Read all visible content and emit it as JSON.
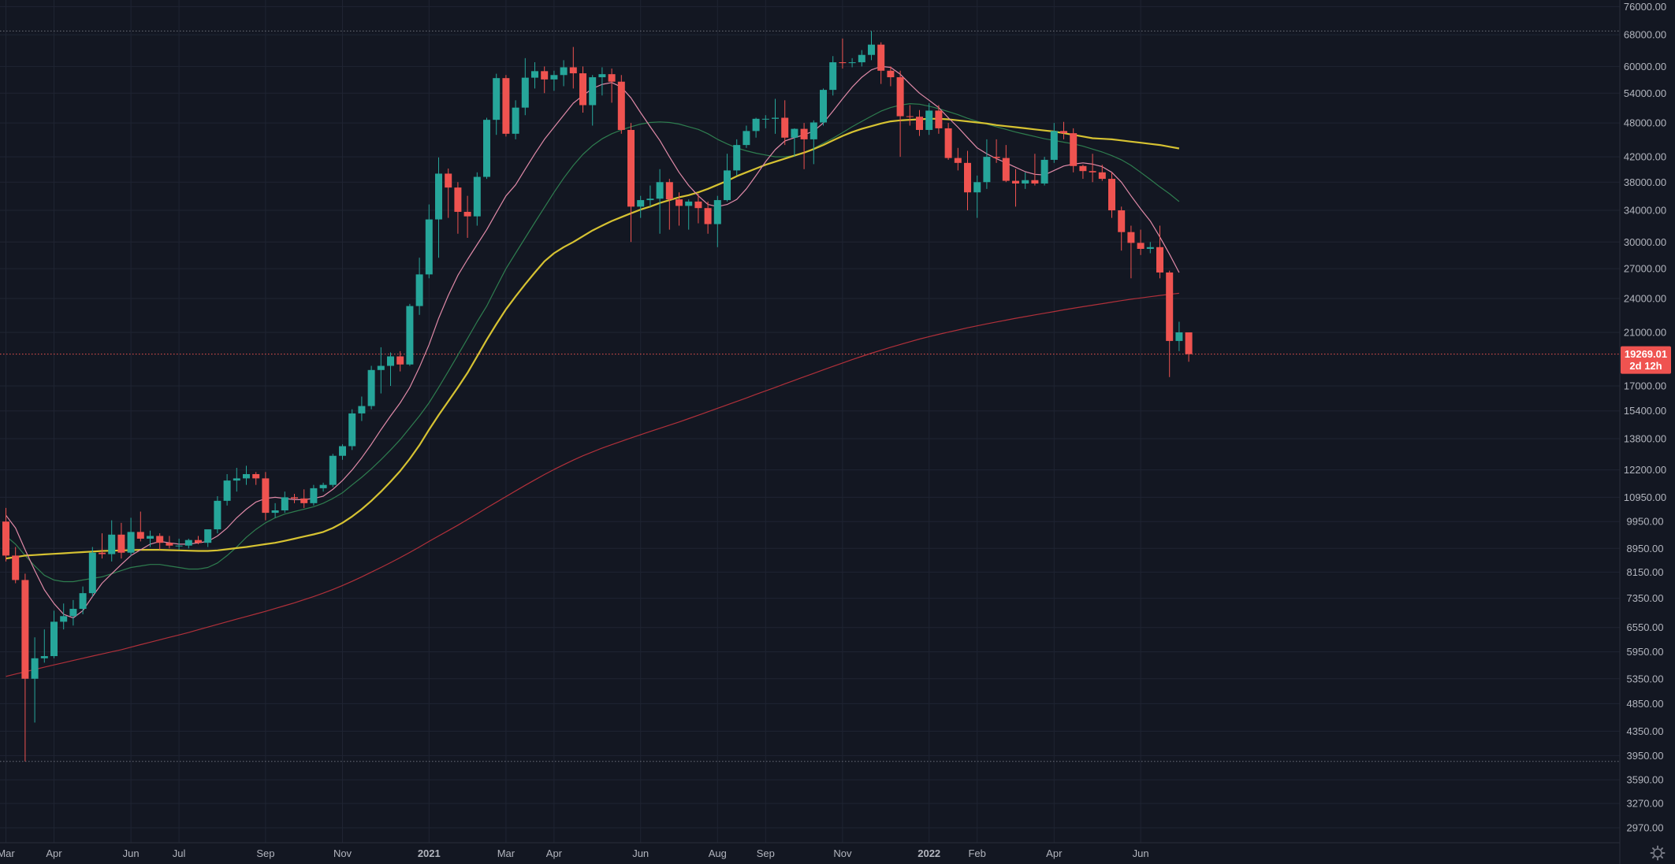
{
  "chart_data": {
    "type": "candlestick",
    "title": "",
    "xlabel": "",
    "ylabel": "",
    "scale": "log",
    "ylim": [
      2800,
      78000
    ],
    "grid": true,
    "colors": {
      "background": "#131722",
      "grid": "#1f2432",
      "up": "#26a69a",
      "down": "#ef5350",
      "ma_short": "#e08aa8",
      "ma_medium": "#2e7d4f",
      "ma_long": "#d6c232",
      "ma_very_long": "#b0303a",
      "axis_text": "#b2b5be"
    },
    "y_ticks": [
      "76000.00",
      "68000.00",
      "60000.00",
      "54000.00",
      "48000.00",
      "42000.00",
      "38000.00",
      "34000.00",
      "30000.00",
      "27000.00",
      "24000.00",
      "21000.00",
      "17000.00",
      "15400.00",
      "13800.00",
      "12200.00",
      "10950.00",
      "9950.00",
      "8950.00",
      "8150.00",
      "7350.00",
      "6550.00",
      "5950.00",
      "5350.00",
      "4850.00",
      "4350.00",
      "3950.00",
      "3590.00",
      "3270.00",
      "2970.00"
    ],
    "x_ticks": [
      {
        "label": "Mar",
        "index": 0
      },
      {
        "label": "Apr",
        "index": 5
      },
      {
        "label": "Jun",
        "index": 13
      },
      {
        "label": "Jul",
        "index": 18
      },
      {
        "label": "Sep",
        "index": 27
      },
      {
        "label": "Nov",
        "index": 35
      },
      {
        "label": "2021",
        "index": 44
      },
      {
        "label": "Mar",
        "index": 52
      },
      {
        "label": "Apr",
        "index": 57
      },
      {
        "label": "Jun",
        "index": 66
      },
      {
        "label": "Aug",
        "index": 74
      },
      {
        "label": "Sep",
        "index": 79
      },
      {
        "label": "Nov",
        "index": 87
      },
      {
        "label": "2022",
        "index": 96
      },
      {
        "label": "Feb",
        "index": 101
      },
      {
        "label": "Apr",
        "index": 109
      },
      {
        "label": "Jun",
        "index": 118
      }
    ],
    "candles": [
      [
        9950,
        10500,
        8500,
        8700
      ],
      [
        8700,
        9000,
        7800,
        7900
      ],
      [
        7900,
        8100,
        3860,
        5350
      ],
      [
        5350,
        6300,
        4500,
        5800
      ],
      [
        5800,
        6500,
        5700,
        5850
      ],
      [
        5850,
        7000,
        5800,
        6700
      ],
      [
        6700,
        7200,
        6500,
        6850
      ],
      [
        6850,
        7300,
        6600,
        7050
      ],
      [
        7050,
        7700,
        6900,
        7500
      ],
      [
        7500,
        9000,
        7400,
        8800
      ],
      [
        8800,
        9500,
        8600,
        8750
      ],
      [
        8750,
        10000,
        8500,
        9450
      ],
      [
        9450,
        9900,
        8600,
        8800
      ],
      [
        8800,
        10100,
        8700,
        9550
      ],
      [
        9550,
        10350,
        9200,
        9300
      ],
      [
        9300,
        9600,
        9000,
        9400
      ],
      [
        9400,
        9500,
        8900,
        9150
      ],
      [
        9150,
        9400,
        8950,
        9050
      ],
      [
        9050,
        9300,
        8900,
        9050
      ],
      [
        9050,
        9300,
        8950,
        9250
      ],
      [
        9250,
        9400,
        9100,
        9150
      ],
      [
        9150,
        9600,
        9000,
        9650
      ],
      [
        9650,
        11000,
        9500,
        10800
      ],
      [
        10800,
        12000,
        10600,
        11700
      ],
      [
        11700,
        12300,
        11200,
        11800
      ],
      [
        11800,
        12400,
        11500,
        12000
      ],
      [
        12000,
        12100,
        11500,
        11800
      ],
      [
        11800,
        12100,
        10000,
        10300
      ],
      [
        10300,
        10700,
        10100,
        10400
      ],
      [
        10400,
        11200,
        10300,
        10950
      ],
      [
        10950,
        11100,
        10700,
        10900
      ],
      [
        10900,
        11300,
        10500,
        10700
      ],
      [
        10700,
        11500,
        10600,
        11350
      ],
      [
        11350,
        11600,
        11200,
        11500
      ],
      [
        11500,
        13000,
        11400,
        12900
      ],
      [
        12900,
        13500,
        12700,
        13400
      ],
      [
        13400,
        15500,
        13200,
        15250
      ],
      [
        15250,
        16300,
        14800,
        15700
      ],
      [
        15700,
        18400,
        15500,
        18100
      ],
      [
        18100,
        19800,
        16500,
        18400
      ],
      [
        18400,
        19400,
        17000,
        19100
      ],
      [
        19100,
        19500,
        18000,
        18500
      ],
      [
        18500,
        23500,
        18400,
        23300
      ],
      [
        23300,
        28200,
        22500,
        26400
      ],
      [
        26400,
        34800,
        26000,
        32800
      ],
      [
        32800,
        41900,
        28200,
        39300
      ],
      [
        39300,
        40100,
        33000,
        37200
      ],
      [
        37200,
        38000,
        31000,
        33800
      ],
      [
        33800,
        36000,
        30500,
        33200
      ],
      [
        33200,
        39500,
        32000,
        38800
      ],
      [
        38800,
        49000,
        38500,
        48600
      ],
      [
        48600,
        58300,
        45800,
        57300
      ],
      [
        57300,
        58000,
        45500,
        46000
      ],
      [
        46000,
        52500,
        45000,
        51000
      ],
      [
        51000,
        62000,
        49500,
        57400
      ],
      [
        57400,
        61000,
        55000,
        58900
      ],
      [
        58900,
        60000,
        54000,
        57000
      ],
      [
        57000,
        59000,
        54500,
        58000
      ],
      [
        58000,
        61500,
        55500,
        59800
      ],
      [
        59800,
        64800,
        55000,
        58400
      ],
      [
        58400,
        60000,
        50000,
        51500
      ],
      [
        51500,
        58000,
        47500,
        57500
      ],
      [
        57500,
        59800,
        53500,
        58200
      ],
      [
        58200,
        59500,
        52000,
        56500
      ],
      [
        56500,
        58000,
        46000,
        46700
      ],
      [
        46700,
        48000,
        30000,
        34500
      ],
      [
        34500,
        36000,
        33000,
        35400
      ],
      [
        35400,
        37500,
        34500,
        35600
      ],
      [
        35600,
        40000,
        31000,
        38000
      ],
      [
        38000,
        38500,
        31500,
        35500
      ],
      [
        35500,
        36500,
        32000,
        34600
      ],
      [
        34600,
        35500,
        31500,
        35200
      ],
      [
        35200,
        36300,
        32300,
        34300
      ],
      [
        34300,
        35200,
        31000,
        32200
      ],
      [
        32200,
        36000,
        29400,
        35400
      ],
      [
        35400,
        42500,
        35200,
        39800
      ],
      [
        39800,
        45000,
        39000,
        44000
      ],
      [
        44000,
        47500,
        43500,
        46500
      ],
      [
        46500,
        49000,
        45300,
        48800
      ],
      [
        48800,
        49500,
        47000,
        48800
      ],
      [
        48800,
        52800,
        46000,
        49000
      ],
      [
        49000,
        52500,
        44000,
        45300
      ],
      [
        45300,
        47000,
        42000,
        46900
      ],
      [
        46900,
        48000,
        40000,
        45000
      ],
      [
        45000,
        48500,
        40800,
        48100
      ],
      [
        48100,
        55000,
        47500,
        54700
      ],
      [
        54700,
        62500,
        53500,
        61000
      ],
      [
        61000,
        67000,
        59500,
        60800
      ],
      [
        60800,
        62000,
        59800,
        61000
      ],
      [
        61000,
        64000,
        60000,
        62800
      ],
      [
        62800,
        69000,
        61500,
        65400
      ],
      [
        65400,
        66000,
        56000,
        59000
      ],
      [
        59000,
        60000,
        55500,
        57500
      ],
      [
        57500,
        59000,
        42000,
        49300
      ],
      [
        49300,
        51500,
        47500,
        49200
      ],
      [
        49200,
        50500,
        45600,
        46700
      ],
      [
        46700,
        51900,
        45800,
        50400
      ],
      [
        50400,
        51500,
        46000,
        47000
      ],
      [
        47000,
        48000,
        41500,
        41800
      ],
      [
        41800,
        43500,
        39800,
        41000
      ],
      [
        41000,
        43000,
        34000,
        36500
      ],
      [
        36500,
        39000,
        33000,
        38000
      ],
      [
        38000,
        45000,
        37000,
        42000
      ],
      [
        42000,
        45000,
        41000,
        41800
      ],
      [
        41800,
        44000,
        38000,
        38200
      ],
      [
        38200,
        40000,
        34500,
        37800
      ],
      [
        37800,
        39500,
        37000,
        38300
      ],
      [
        38300,
        42500,
        37500,
        37800
      ],
      [
        37800,
        42000,
        37500,
        41500
      ],
      [
        41500,
        48000,
        41000,
        46500
      ],
      [
        46500,
        48200,
        45000,
        46100
      ],
      [
        46100,
        47000,
        39500,
        40500
      ],
      [
        40500,
        40700,
        38500,
        39700
      ],
      [
        39700,
        42500,
        38000,
        39500
      ],
      [
        39500,
        40700,
        38200,
        38500
      ],
      [
        38500,
        39500,
        33000,
        34000
      ],
      [
        34000,
        34500,
        29000,
        31200
      ],
      [
        31200,
        32000,
        26000,
        29900
      ],
      [
        29900,
        31500,
        28500,
        29200
      ],
      [
        29200,
        30000,
        28700,
        29400
      ],
      [
        29400,
        32000,
        26000,
        26600
      ],
      [
        26600,
        26800,
        17600,
        20300
      ],
      [
        20300,
        21900,
        19500,
        21000
      ],
      [
        21000,
        21000,
        18700,
        19269
      ]
    ],
    "ma_short": [
      10200,
      9700,
      8900,
      8200,
      7600,
      7200,
      6900,
      6800,
      7000,
      7400,
      7800,
      8100,
      8400,
      8700,
      8900,
      9100,
      9200,
      9150,
      9100,
      9100,
      9150,
      9200,
      9400,
      9700,
      10100,
      10450,
      10750,
      10900,
      10950,
      10900,
      10850,
      10850,
      10900,
      11000,
      11300,
      11700,
      12200,
      12800,
      13500,
      14300,
      15100,
      15900,
      16900,
      18300,
      20000,
      22200,
      24300,
      26300,
      28000,
      29700,
      31500,
      33700,
      36000,
      37600,
      40000,
      42500,
      45000,
      47200,
      49500,
      51900,
      53500,
      55000,
      55900,
      56300,
      55300,
      53000,
      50000,
      47300,
      44800,
      42000,
      39500,
      37500,
      36000,
      34800,
      34500,
      34800,
      35500,
      37000,
      39000,
      41200,
      43200,
      44700,
      45300,
      45800,
      46500,
      48000,
      50300,
      52800,
      55300,
      57500,
      59200,
      60000,
      59800,
      58200,
      56000,
      54000,
      52500,
      51000,
      49000,
      47200,
      45300,
      43500,
      42500,
      41700,
      41000,
      40300,
      39600,
      39200,
      39100,
      39800,
      40500,
      40800,
      41000,
      40800,
      40400,
      39500,
      38000,
      36000,
      34200,
      32600,
      30600,
      28600,
      26600
    ],
    "ma_medium": [
      9400,
      9100,
      8700,
      8350,
      8050,
      7900,
      7850,
      7850,
      7900,
      7950,
      8000,
      8100,
      8200,
      8300,
      8350,
      8400,
      8400,
      8350,
      8300,
      8250,
      8250,
      8300,
      8450,
      8700,
      9000,
      9350,
      9650,
      9900,
      10100,
      10250,
      10350,
      10450,
      10550,
      10700,
      10900,
      11150,
      11500,
      11850,
      12250,
      12700,
      13200,
      13750,
      14400,
      15100,
      15900,
      16900,
      18000,
      19200,
      20500,
      21900,
      23300,
      25100,
      27000,
      28700,
      30500,
      32400,
      34400,
      36500,
      38600,
      40600,
      42400,
      43900,
      45100,
      46000,
      46700,
      47300,
      47800,
      48100,
      48200,
      48100,
      47800,
      47300,
      46800,
      46000,
      45000,
      44200,
      43500,
      43000,
      42600,
      42300,
      42000,
      42000,
      42200,
      42700,
      43400,
      44300,
      45200,
      46200,
      47300,
      48300,
      49300,
      50300,
      51000,
      51500,
      51800,
      51700,
      51300,
      50800,
      50200,
      49600,
      48900,
      48300,
      47800,
      47300,
      46800,
      46300,
      45900,
      45500,
      45100,
      44800,
      44500,
      44200,
      43800,
      43300,
      42800,
      42200,
      41500,
      40600,
      39500,
      38400,
      37300,
      36300,
      35200
    ],
    "ma_long": [
      8600,
      8650,
      8700,
      8720,
      8740,
      8760,
      8780,
      8800,
      8820,
      8840,
      8860,
      8870,
      8880,
      8890,
      8900,
      8900,
      8900,
      8890,
      8880,
      8870,
      8860,
      8860,
      8880,
      8920,
      8960,
      9000,
      9050,
      9100,
      9150,
      9220,
      9300,
      9380,
      9460,
      9550,
      9700,
      9900,
      10150,
      10450,
      10800,
      11200,
      11650,
      12150,
      12750,
      13450,
      14300,
      15150,
      16000,
      16900,
      17900,
      19100,
      20400,
      21700,
      23000,
      24200,
      25400,
      26600,
      27800,
      28700,
      29400,
      30000,
      30700,
      31400,
      32000,
      32600,
      33100,
      33600,
      34100,
      34500,
      35000,
      35400,
      35800,
      36100,
      36500,
      37000,
      37600,
      38200,
      38900,
      39500,
      40100,
      40700,
      41200,
      41700,
      42200,
      42700,
      43300,
      44000,
      44800,
      45600,
      46300,
      46900,
      47400,
      47900,
      48300,
      48500,
      48600,
      48700,
      48800,
      48800,
      48700,
      48500,
      48300,
      48100,
      47900,
      47600,
      47400,
      47200,
      47000,
      46800,
      46600,
      46400,
      46100,
      45800,
      45500,
      45200,
      45100,
      45000,
      44800,
      44600,
      44400,
      44200,
      44000,
      43700,
      43400
    ],
    "ma_very_long": [
      5400,
      5450,
      5500,
      5550,
      5600,
      5650,
      5700,
      5750,
      5800,
      5850,
      5900,
      5950,
      6000,
      6060,
      6120,
      6180,
      6240,
      6300,
      6360,
      6420,
      6490,
      6560,
      6630,
      6700,
      6770,
      6840,
      6910,
      6980,
      7060,
      7140,
      7220,
      7310,
      7400,
      7500,
      7610,
      7730,
      7860,
      8000,
      8150,
      8300,
      8460,
      8630,
      8810,
      9000,
      9200,
      9400,
      9600,
      9810,
      10030,
      10260,
      10500,
      10740,
      10980,
      11230,
      11480,
      11730,
      11980,
      12220,
      12450,
      12680,
      12900,
      13100,
      13300,
      13480,
      13660,
      13840,
      14020,
      14200,
      14380,
      14560,
      14740,
      14940,
      15140,
      15350,
      15560,
      15770,
      15990,
      16210,
      16440,
      16670,
      16900,
      17140,
      17380,
      17620,
      17860,
      18110,
      18360,
      18610,
      18860,
      19100,
      19340,
      19570,
      19800,
      20020,
      20240,
      20450,
      20650,
      20840,
      21020,
      21200,
      21380,
      21550,
      21720,
      21880,
      22040,
      22200,
      22350,
      22500,
      22650,
      22800,
      22950,
      23100,
      23240,
      23380,
      23520,
      23660,
      23800,
      23940,
      24060,
      24180,
      24300,
      24400,
      24500
    ],
    "horizontal_lines": [
      {
        "value": 69000,
        "style": "dotted",
        "color": "#6b6f7a"
      },
      {
        "value": 3860,
        "style": "dotted",
        "color": "#6b6f7a"
      },
      {
        "value": 19269,
        "style": "dotted",
        "color": "#ef5350"
      }
    ],
    "last_price_label": {
      "price": "19269.01",
      "countdown": "2d 12h",
      "color": "#ef5350"
    }
  },
  "settings_icon": "gear-icon"
}
